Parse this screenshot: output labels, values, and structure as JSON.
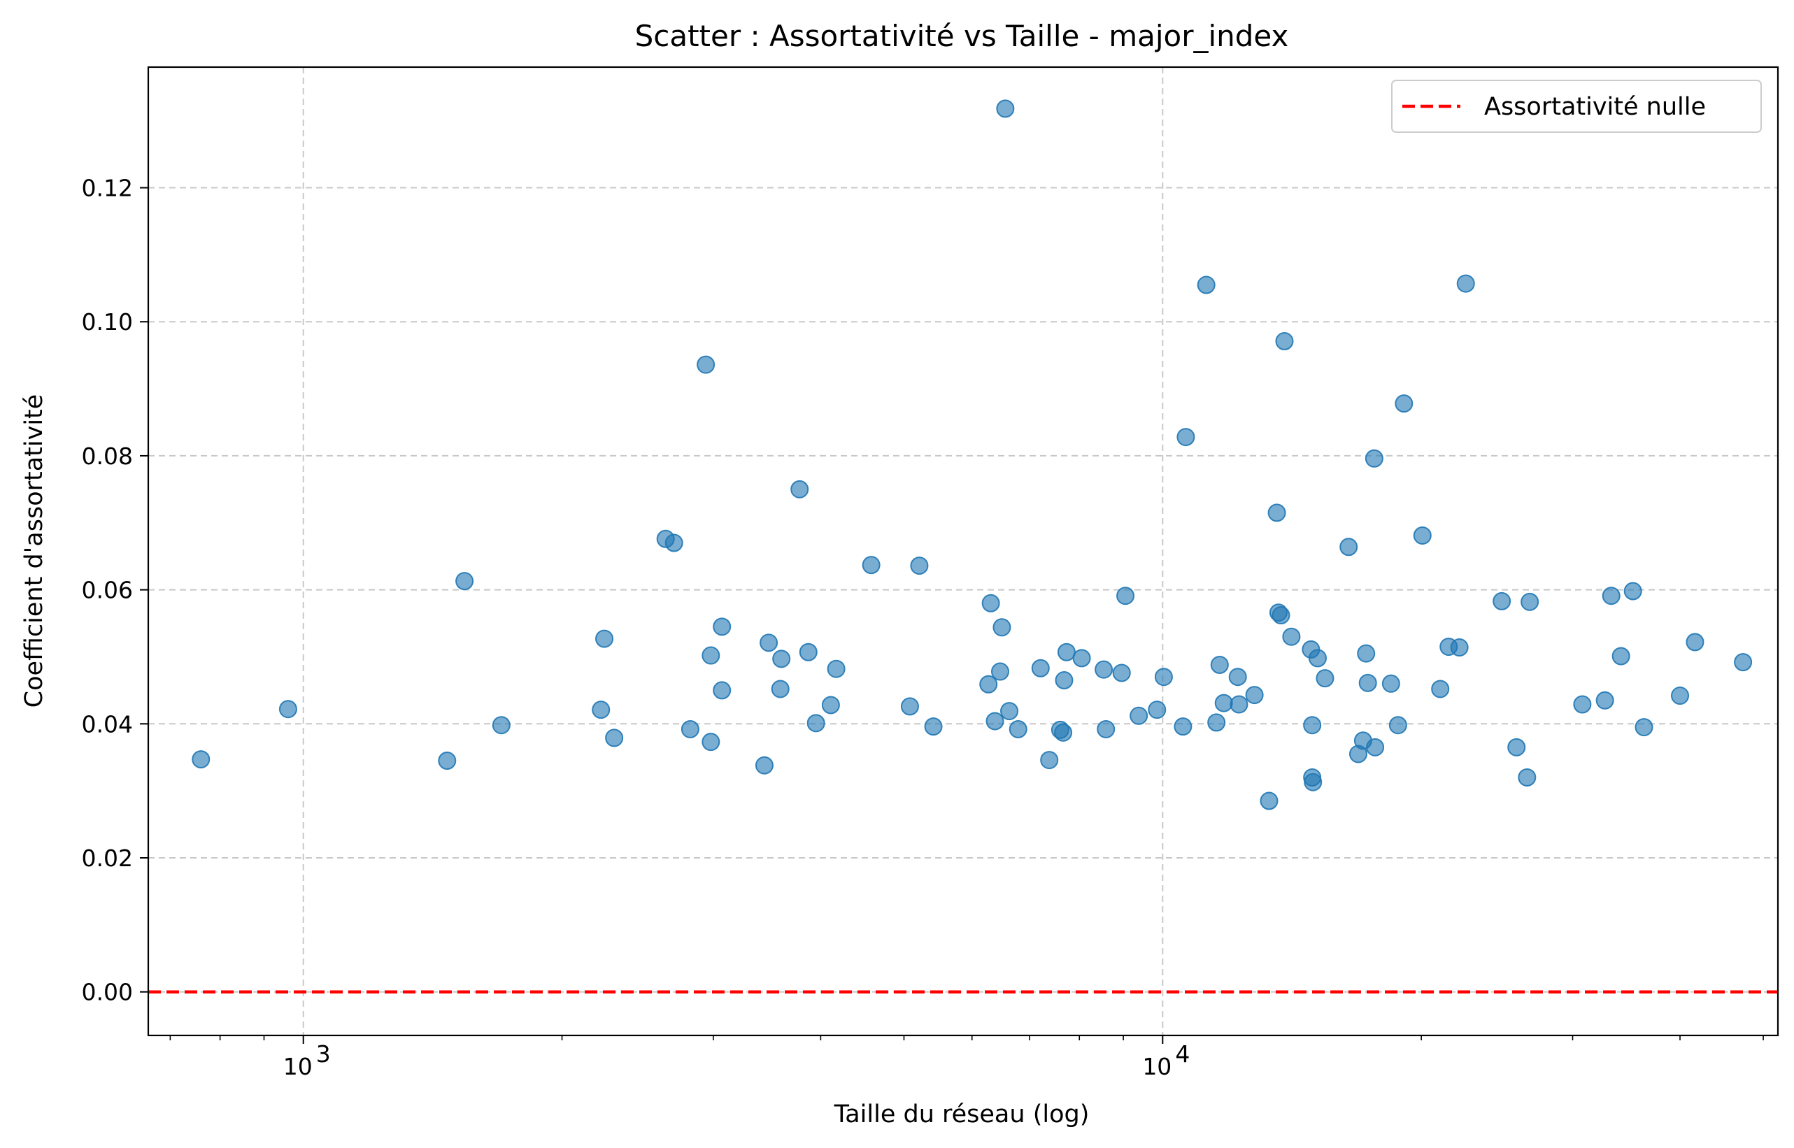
{
  "chart_data": {
    "type": "scatter",
    "title": "Scatter : Assortativité vs Taille - major_index",
    "xlabel": "Taille du réseau (log)",
    "ylabel": "Coefficient d'assortativité",
    "x_scale": "log",
    "xlim": [
      660,
      52000
    ],
    "ylim": [
      -0.0065,
      0.138
    ],
    "x_ticks": [
      {
        "value": 1000,
        "label": "10",
        "exp": "3"
      },
      {
        "value": 10000,
        "label": "10",
        "exp": "4"
      }
    ],
    "y_ticks": [
      {
        "value": 0.0,
        "label": "0.00"
      },
      {
        "value": 0.02,
        "label": "0.02"
      },
      {
        "value": 0.04,
        "label": "0.04"
      },
      {
        "value": 0.06,
        "label": "0.06"
      },
      {
        "value": 0.08,
        "label": "0.08"
      },
      {
        "value": 0.1,
        "label": "0.10"
      },
      {
        "value": 0.12,
        "label": "0.12"
      }
    ],
    "grid": true,
    "legend_position": "top-right",
    "reference_line": {
      "y": 0,
      "name": "Assortativité nulle",
      "color": "#ff0000",
      "style": "dashed"
    },
    "marker_color": "#1f77b4",
    "marker_alpha": 0.6,
    "points": [
      [
        760,
        0.0347
      ],
      [
        960,
        0.0422
      ],
      [
        1470,
        0.0345
      ],
      [
        1540,
        0.0613
      ],
      [
        1700,
        0.0398
      ],
      [
        2220,
        0.0421
      ],
      [
        2240,
        0.0527
      ],
      [
        2300,
        0.0379
      ],
      [
        2640,
        0.0676
      ],
      [
        2700,
        0.067
      ],
      [
        2820,
        0.0392
      ],
      [
        2940,
        0.0936
      ],
      [
        2980,
        0.0373
      ],
      [
        2980,
        0.0502
      ],
      [
        3070,
        0.0545
      ],
      [
        3070,
        0.045
      ],
      [
        3440,
        0.0338
      ],
      [
        3480,
        0.0521
      ],
      [
        3590,
        0.0452
      ],
      [
        3600,
        0.0497
      ],
      [
        3780,
        0.075
      ],
      [
        3870,
        0.0507
      ],
      [
        3950,
        0.0401
      ],
      [
        4110,
        0.0428
      ],
      [
        4170,
        0.0482
      ],
      [
        4580,
        0.0637
      ],
      [
        5080,
        0.0426
      ],
      [
        5210,
        0.0636
      ],
      [
        5410,
        0.0396
      ],
      [
        6270,
        0.0459
      ],
      [
        6310,
        0.058
      ],
      [
        6380,
        0.0404
      ],
      [
        6470,
        0.0478
      ],
      [
        6500,
        0.0544
      ],
      [
        6560,
        0.1318
      ],
      [
        6630,
        0.0419
      ],
      [
        6790,
        0.0392
      ],
      [
        7210,
        0.0483
      ],
      [
        7380,
        0.0346
      ],
      [
        7600,
        0.0391
      ],
      [
        7660,
        0.0387
      ],
      [
        7680,
        0.0465
      ],
      [
        7730,
        0.0507
      ],
      [
        8050,
        0.0498
      ],
      [
        8540,
        0.0481
      ],
      [
        8590,
        0.0392
      ],
      [
        8960,
        0.0476
      ],
      [
        9050,
        0.0591
      ],
      [
        9380,
        0.0412
      ],
      [
        9850,
        0.0421
      ],
      [
        10030,
        0.047
      ],
      [
        10560,
        0.0396
      ],
      [
        10640,
        0.0828
      ],
      [
        11240,
        0.1055
      ],
      [
        11550,
        0.0402
      ],
      [
        11650,
        0.0488
      ],
      [
        11780,
        0.0431
      ],
      [
        12230,
        0.047
      ],
      [
        12270,
        0.0429
      ],
      [
        12790,
        0.0443
      ],
      [
        13300,
        0.0285
      ],
      [
        13580,
        0.0715
      ],
      [
        13640,
        0.0566
      ],
      [
        13730,
        0.0562
      ],
      [
        13860,
        0.0971
      ],
      [
        14120,
        0.053
      ],
      [
        14880,
        0.0511
      ],
      [
        14930,
        0.0398
      ],
      [
        14930,
        0.032
      ],
      [
        14960,
        0.0313
      ],
      [
        15150,
        0.0498
      ],
      [
        15450,
        0.0468
      ],
      [
        16460,
        0.0664
      ],
      [
        16890,
        0.0355
      ],
      [
        17110,
        0.0375
      ],
      [
        17250,
        0.0505
      ],
      [
        17330,
        0.0461
      ],
      [
        17630,
        0.0796
      ],
      [
        17670,
        0.0365
      ],
      [
        18440,
        0.046
      ],
      [
        18790,
        0.0398
      ],
      [
        19090,
        0.0878
      ],
      [
        20060,
        0.0681
      ],
      [
        21040,
        0.0452
      ],
      [
        21520,
        0.0515
      ],
      [
        22150,
        0.0514
      ],
      [
        22530,
        0.1057
      ],
      [
        24810,
        0.0583
      ],
      [
        25810,
        0.0365
      ],
      [
        26550,
        0.032
      ],
      [
        26740,
        0.0582
      ],
      [
        30790,
        0.0429
      ],
      [
        32710,
        0.0435
      ],
      [
        33270,
        0.0591
      ],
      [
        34150,
        0.0501
      ],
      [
        35260,
        0.0598
      ],
      [
        36320,
        0.0395
      ],
      [
        40000,
        0.0442
      ],
      [
        41640,
        0.0522
      ],
      [
        47360,
        0.0492
      ]
    ]
  }
}
